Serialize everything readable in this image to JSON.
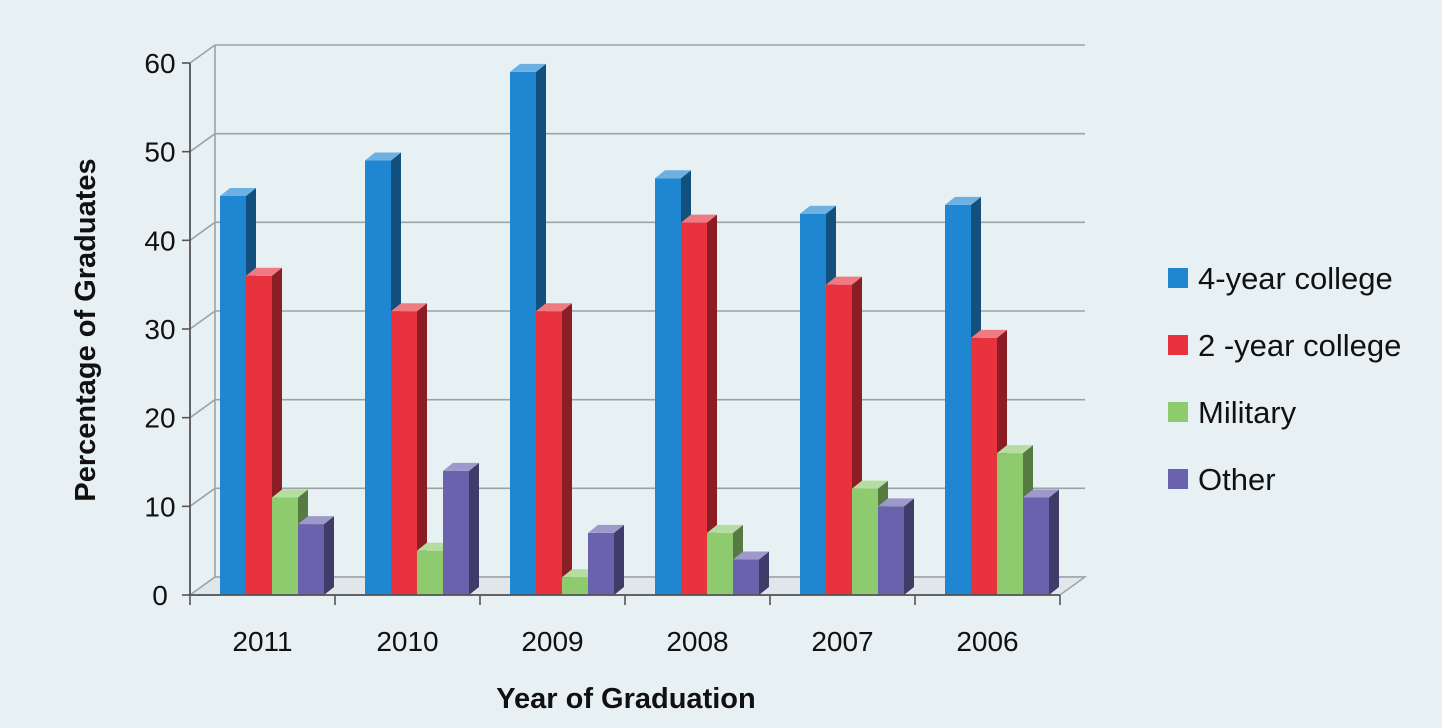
{
  "chart_data": {
    "type": "bar",
    "style": "3d-clustered-column",
    "title": "",
    "xlabel": "Year of Graduation",
    "ylabel": "Percentage of Graduates",
    "categories": [
      "2011",
      "2010",
      "2009",
      "2008",
      "2007",
      "2006"
    ],
    "ylim": [
      0,
      60
    ],
    "yticks": [
      "0",
      "10",
      "20",
      "30",
      "40",
      "50",
      "60"
    ],
    "grid": true,
    "legend_position": "right",
    "series": [
      {
        "name": "4-year college",
        "color": "#1f86d2",
        "values": [
          45,
          49,
          59,
          47,
          43,
          44
        ]
      },
      {
        "name": "2 -year college",
        "color": "#e8323e",
        "values": [
          36,
          32,
          32,
          42,
          35,
          29
        ]
      },
      {
        "name": "Military",
        "color": "#8ecb6e",
        "values": [
          11,
          5,
          2,
          7,
          12,
          16
        ]
      },
      {
        "name": "Other",
        "color": "#6a62ad",
        "values": [
          8,
          14,
          7,
          4,
          10,
          11
        ]
      }
    ]
  }
}
